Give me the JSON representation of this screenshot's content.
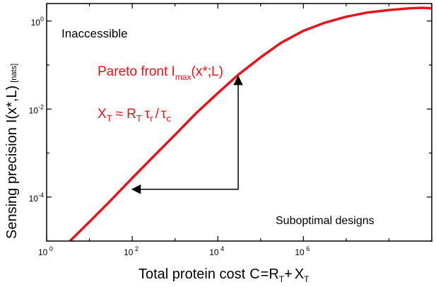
{
  "chart_data": {
    "type": "line",
    "xlabel_prefix": "Total protein cost",
    "xlabel_formula": {
      "lhs": "C",
      "a": "R",
      "a_sub": "T",
      "b": "X",
      "b_sub": "T"
    },
    "ylabel_main": "Sensing precision",
    "ylabel_symbol": "I(x*,L)",
    "ylabel_units": "[nats]",
    "xscale": "log",
    "yscale": "log",
    "xlim": [
      1,
      1000000000
    ],
    "ylim": [
      1e-05,
      2.5
    ],
    "x_ticks": [
      {
        "value": 1,
        "base": "10",
        "exp": "0"
      },
      {
        "value": 100,
        "base": "10",
        "exp": "2"
      },
      {
        "value": 10000,
        "base": "10",
        "exp": "4"
      },
      {
        "value": 1000000,
        "base": "10",
        "exp": "6"
      }
    ],
    "y_ticks": [
      {
        "value": 0.0001,
        "base": "10",
        "exp": "-4"
      },
      {
        "value": 0.01,
        "base": "10",
        "exp": "-2"
      },
      {
        "value": 1,
        "base": "10",
        "exp": "0"
      }
    ],
    "series": [
      {
        "color": "#e8141b",
        "x": [
          3.5,
          10,
          30,
          100,
          300,
          1000,
          3000,
          10000,
          30000,
          100000,
          300000,
          1000000,
          3000000,
          10000000,
          30000000,
          100000000,
          300000000,
          600000000,
          1000000000
        ],
        "y": [
          1e-05,
          2.75e-05,
          8e-05,
          0.00027,
          0.0008,
          0.0026,
          0.0078,
          0.023,
          0.06,
          0.15,
          0.32,
          0.6,
          0.9,
          1.25,
          1.55,
          1.78,
          1.95,
          2.0,
          1.95
        ]
      }
    ],
    "annotations": {
      "inaccessible": "Inaccessible",
      "suboptimal": "Suboptimal designs",
      "pareto_prefix": "Pareto front I",
      "pareto_sub": "max",
      "pareto_suffix": "(x*;L)",
      "relation": {
        "lhs": "X",
        "lhs_sub": "T",
        "approx": "≈",
        "r": "R",
        "r_sub": "T",
        "tau1": "τ",
        "tau1_sub": "r",
        "slash": "/",
        "tau2": "τ",
        "tau2_sub": "c"
      }
    },
    "arrow_path": {
      "start": [
        100,
        0.00015
      ],
      "corner": [
        30000,
        0.00015
      ],
      "end": [
        30000,
        0.055
      ]
    },
    "grid": false,
    "legend": "none"
  }
}
